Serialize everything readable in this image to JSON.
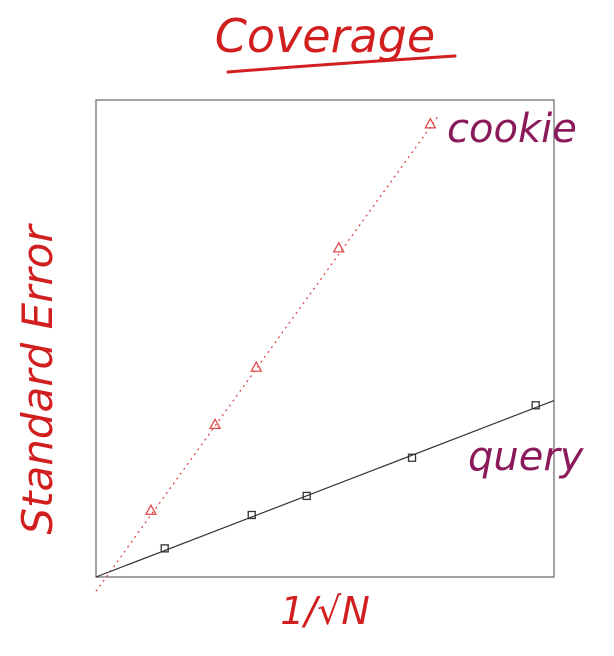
{
  "chart_data": {
    "type": "scatter",
    "title": "Coverage",
    "xlabel": "1/√N",
    "ylabel": "Standard Error",
    "xlim": [
      0,
      1
    ],
    "ylim": [
      0,
      1
    ],
    "grid": false,
    "legend": "inline labels at right",
    "series": [
      {
        "name": "cookie",
        "marker": "triangle",
        "line": "dotted",
        "x": [
          0.12,
          0.26,
          0.35,
          0.53,
          0.73
        ],
        "y": [
          0.14,
          0.32,
          0.44,
          0.69,
          0.95
        ],
        "fit": [
          [
            0.0,
            -0.03
          ],
          [
            0.75,
            0.97
          ]
        ]
      },
      {
        "name": "query",
        "marker": "square",
        "line": "solid",
        "x": [
          0.15,
          0.34,
          0.46,
          0.69,
          0.96
        ],
        "y": [
          0.06,
          0.13,
          0.17,
          0.25,
          0.36
        ],
        "fit": [
          [
            0.0,
            0.0
          ],
          [
            1.0,
            0.37
          ]
        ]
      }
    ]
  },
  "colors": {
    "title": "#d11f1f",
    "axis_labels": "#d11f1f",
    "series_labels": "#8a1a5a",
    "cookie": "#e04848",
    "query": "#333333",
    "frame": "#666666"
  }
}
